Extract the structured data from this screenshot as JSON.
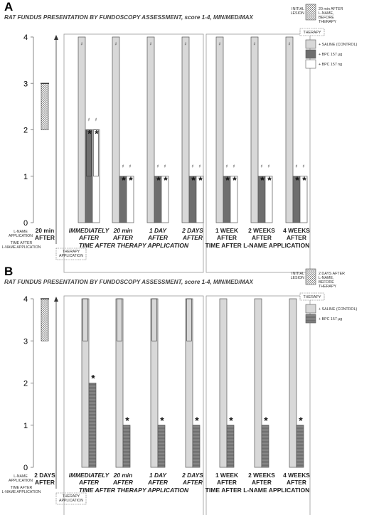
{
  "colors": {
    "lesion": "#e4e4e4",
    "saline": "#d2d2d2",
    "bpc_ug": "#6e6e6e",
    "bpc_ng": "#ffffff",
    "border": "#555555"
  },
  "figures": [
    {
      "panel_label": "A",
      "title": "RAT FUNDUS PRESENTATION BY FUNDOSCOPY ASSESSMENT, score 1-4, MIN/MED/MAX",
      "legend": {
        "lesion_label_lines": [
          "INITIAL",
          "LESION"
        ],
        "lesion_desc_lines": [
          "20 min AFTER",
          "L-NAME,",
          "BEFORE",
          "THERAPY"
        ],
        "therapy_box": "THERAPY",
        "series_labels": [
          "+ SALINE (CONTROL)",
          "+ BPC 157 μg",
          "+ BPC 157 ng"
        ]
      },
      "left_label_lines": [
        "L-NAME",
        "APPLICATION"
      ],
      "left_time_lines": [
        "TIME AFTER",
        "L-NAME APPLICATION"
      ],
      "therapy_box_lines": [
        "THERAPY",
        "APPLICATION"
      ],
      "group_title_therapy": "TIME AFTER THERAPY APPLICATION",
      "group_title_lname": "TIME AFTER L-NAME APPLICATION"
    },
    {
      "panel_label": "B",
      "title": "RAT FUNDUS PRESENTATION BY FUNDOSCOPY ASSESSMENT, score 1-4, MIN/MED/MAX",
      "legend": {
        "lesion_label_lines": [
          "INITIAL",
          "LESION"
        ],
        "lesion_desc_lines": [
          "2 DAYS AFTER",
          "L-NAME,",
          "BEFORE",
          "THERAPY"
        ],
        "therapy_box": "THERAPY",
        "series_labels": [
          "+ SALINE (CONTROL)",
          "+ BPC 157 μg"
        ]
      },
      "left_label_lines": [
        "L-NAME",
        "APPLICATION"
      ],
      "left_time_lines": [
        "TIME AFTER",
        "L-NAME APPLICATION"
      ],
      "therapy_box_lines": [
        "THERAPY",
        "APPLICATION"
      ],
      "group_title_therapy": "TIME AFTER THERAPY APPLICATION",
      "group_title_lname": "TIME AFTER L-NAME APPLICATION"
    }
  ],
  "chart_data": [
    {
      "type": "bar",
      "title": "RAT FUNDUS PRESENTATION BY FUNDOSCOPY ASSESSMENT, score 1-4, MIN/MED/MAX",
      "ylim": [
        0,
        4
      ],
      "yticks": [
        0,
        1,
        2,
        3,
        4
      ],
      "initial_lesion": {
        "category_lines": [
          "20 min",
          "AFTER"
        ],
        "min": 2,
        "median": 3,
        "max": 3
      },
      "categories": [
        {
          "lines": [
            "IMMEDIATELY",
            "AFTER"
          ],
          "italic": true
        },
        {
          "lines": [
            "20 min",
            "AFTER"
          ],
          "italic": true
        },
        {
          "lines": [
            "1 DAY",
            "AFTER"
          ],
          "italic": true
        },
        {
          "lines": [
            "2 DAYS",
            "AFTER"
          ],
          "italic": true
        },
        {
          "lines": [
            "1 WEEK",
            "AFTER"
          ],
          "italic": false
        },
        {
          "lines": [
            "2 WEEKS",
            "AFTER"
          ],
          "italic": false
        },
        {
          "lines": [
            "4 WEEKS",
            "AFTER"
          ],
          "italic": false
        }
      ],
      "series": [
        {
          "name": "+ SALINE (CONTROL)",
          "values": [
            4,
            4,
            4,
            4,
            4,
            4,
            4
          ],
          "min": [
            4,
            4,
            4,
            4,
            4,
            4,
            4
          ],
          "max": [
            4,
            4,
            4,
            4,
            4,
            4,
            4
          ]
        },
        {
          "name": "+ BPC 157 μg",
          "values": [
            2,
            1,
            1,
            1,
            1,
            1,
            1
          ],
          "min": [
            1,
            1,
            1,
            1,
            1,
            1,
            1
          ],
          "max": [
            2,
            1,
            1,
            1,
            1,
            1,
            1
          ]
        },
        {
          "name": "+ BPC 157 ng",
          "values": [
            2,
            1,
            1,
            1,
            1,
            1,
            1
          ],
          "min": [
            1,
            1,
            1,
            1,
            1,
            1,
            1
          ],
          "max": [
            2,
            1,
            1,
            1,
            1,
            1,
            1
          ]
        }
      ],
      "annotations": {
        "significance_marks": "*",
        "significance_vs_initial": "#"
      }
    },
    {
      "type": "bar",
      "title": "RAT FUNDUS PRESENTATION BY FUNDOSCOPY ASSESSMENT, score 1-4, MIN/MED/MAX",
      "ylim": [
        0,
        4
      ],
      "yticks": [
        0,
        1,
        2,
        3,
        4
      ],
      "initial_lesion": {
        "category_lines": [
          "2 DAYS",
          "AFTER"
        ],
        "min": 3,
        "median": 4,
        "max": 4
      },
      "categories": [
        {
          "lines": [
            "IMMEDIATELY",
            "AFTER"
          ],
          "italic": true
        },
        {
          "lines": [
            "20 min",
            "AFTER"
          ],
          "italic": true
        },
        {
          "lines": [
            "1 DAY",
            "AFTER"
          ],
          "italic": true
        },
        {
          "lines": [
            "2 DAYS",
            "AFTER"
          ],
          "italic": true
        },
        {
          "lines": [
            "1 WEEK",
            "AFTER"
          ],
          "italic": false
        },
        {
          "lines": [
            "2 WEEKS",
            "AFTER"
          ],
          "italic": false
        },
        {
          "lines": [
            "4 WEEKS",
            "AFTER"
          ],
          "italic": false
        }
      ],
      "series": [
        {
          "name": "+ SALINE (CONTROL)",
          "values": [
            4,
            4,
            4,
            4,
            4,
            4,
            4
          ],
          "min": [
            3,
            3,
            3,
            3,
            4,
            4,
            4
          ],
          "max": [
            4,
            4,
            4,
            4,
            4,
            4,
            4
          ]
        },
        {
          "name": "+ BPC 157 μg",
          "values": [
            2,
            1,
            1,
            1,
            1,
            1,
            1
          ],
          "min": [
            2,
            1,
            1,
            1,
            1,
            1,
            1
          ],
          "max": [
            2,
            1,
            1,
            1,
            1,
            1,
            1
          ]
        }
      ],
      "annotations": {
        "significance_marks": "*"
      }
    }
  ]
}
